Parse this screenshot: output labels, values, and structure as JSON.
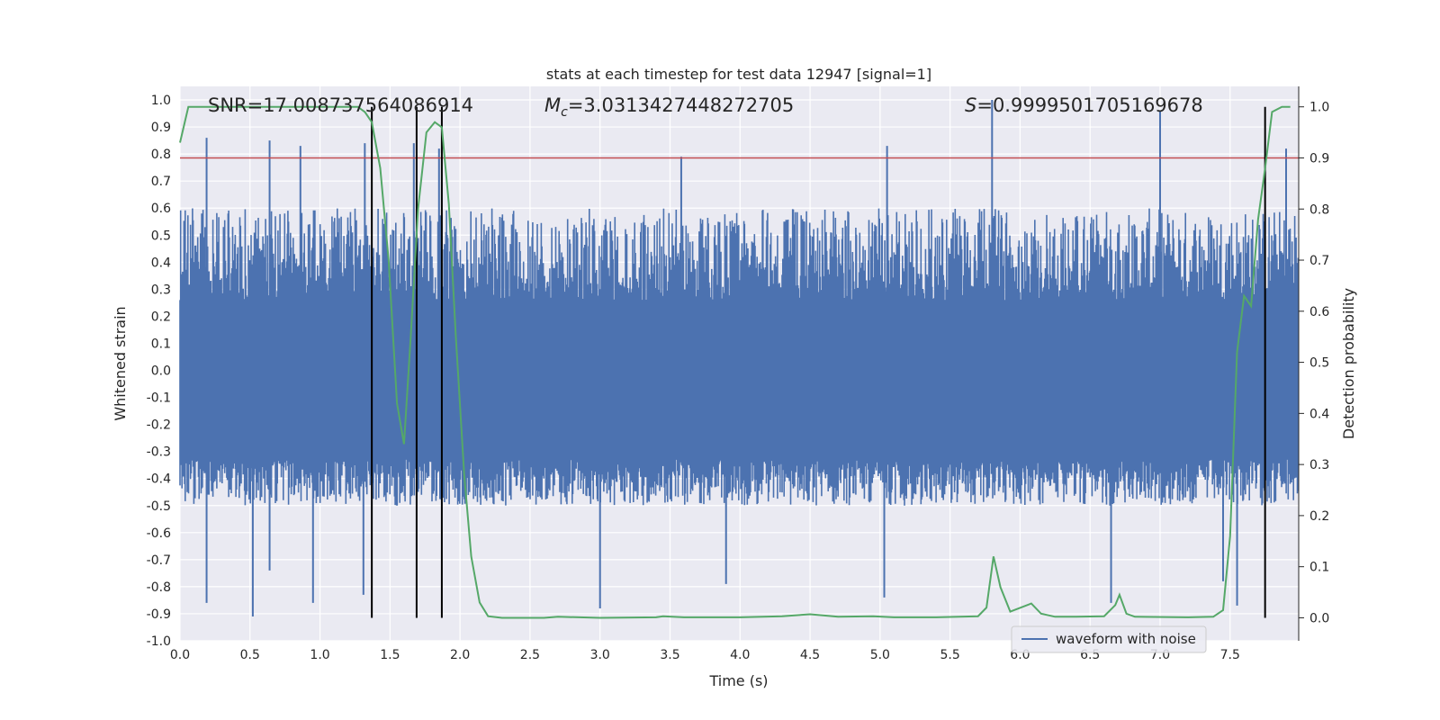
{
  "chart_data": {
    "type": "line",
    "title": "stats at each timestep for test data 12947 [signal=1]",
    "xlabel": "Time (s)",
    "ylabel": "Whitened strain",
    "ylabel_right": "Detection probability",
    "xlim": [
      0.0,
      7.99
    ],
    "ylim": [
      -1.0,
      1.05
    ],
    "ylim_right": [
      -0.045,
      1.04
    ],
    "grid": true,
    "x_ticks": [
      "0.0",
      "0.5",
      "1.0",
      "1.5",
      "2.0",
      "2.5",
      "3.0",
      "3.5",
      "4.0",
      "4.5",
      "5.0",
      "5.5",
      "6.0",
      "6.5",
      "7.0",
      "7.5"
    ],
    "y_ticks": [
      "1.0",
      "0.9",
      "0.8",
      "0.7",
      "0.6",
      "0.5",
      "0.4",
      "0.3",
      "0.2",
      "0.1",
      "0.0",
      "-0.1",
      "-0.2",
      "-0.3",
      "-0.4",
      "-0.5",
      "-0.6",
      "-0.7",
      "-0.8",
      "-0.9",
      "-1.0"
    ],
    "y_ticks_right": [
      "1.0",
      "0.9",
      "0.8",
      "0.7",
      "0.6",
      "0.5",
      "0.4",
      "0.3",
      "0.2",
      "0.1",
      "0.0"
    ],
    "annotations": {
      "snr": "SNR=17.008737564086914",
      "mc_sym": "M",
      "mc_sub": "c",
      "mc_val": "=3.0313427448272705",
      "s_sym": "S",
      "s_val": "=0.9999501705169678"
    },
    "threshold_line": {
      "axis": "right",
      "y": 0.9,
      "color": "#c44e52"
    },
    "vertical_lines": [
      1.37,
      1.69,
      1.87,
      7.75
    ],
    "vertical_lines_range": [
      0.0,
      1.0
    ],
    "legend": {
      "entries": [
        "waveform with noise"
      ],
      "placement": "lower-right"
    },
    "series": [
      {
        "name": "waveform with noise",
        "axis": "left",
        "color": "#4c72b0",
        "summary": {
          "n_samples": 16000,
          "typical_range": [
            -0.5,
            0.6
          ],
          "max": 1.0,
          "min": -0.91
        },
        "spikes_up": [
          [
            0.19,
            0.86
          ],
          [
            0.64,
            0.85
          ],
          [
            0.86,
            0.83
          ],
          [
            1.32,
            0.84
          ],
          [
            1.67,
            0.84
          ],
          [
            1.85,
            0.82
          ],
          [
            3.58,
            0.79
          ],
          [
            5.05,
            0.83
          ],
          [
            5.8,
            1.0
          ],
          [
            7.0,
            0.96
          ],
          [
            7.9,
            0.82
          ]
        ],
        "spikes_down": [
          [
            0.19,
            -0.86
          ],
          [
            0.52,
            -0.91
          ],
          [
            0.64,
            -0.74
          ],
          [
            0.95,
            -0.86
          ],
          [
            1.31,
            -0.83
          ],
          [
            3.0,
            -0.88
          ],
          [
            3.9,
            -0.79
          ],
          [
            5.03,
            -0.84
          ],
          [
            6.65,
            -0.86
          ],
          [
            7.45,
            -0.78
          ],
          [
            7.55,
            -0.87
          ]
        ]
      },
      {
        "name": "",
        "axis": "right",
        "color": "#55a868",
        "points": [
          [
            0.0,
            0.93
          ],
          [
            0.06,
            1.0
          ],
          [
            0.3,
            1.0
          ],
          [
            0.6,
            1.0
          ],
          [
            1.0,
            1.0
          ],
          [
            1.27,
            1.0
          ],
          [
            1.32,
            0.99
          ],
          [
            1.37,
            0.97
          ],
          [
            1.43,
            0.88
          ],
          [
            1.49,
            0.7
          ],
          [
            1.55,
            0.42
          ],
          [
            1.6,
            0.34
          ],
          [
            1.65,
            0.56
          ],
          [
            1.7,
            0.8
          ],
          [
            1.76,
            0.95
          ],
          [
            1.82,
            0.97
          ],
          [
            1.87,
            0.96
          ],
          [
            1.92,
            0.81
          ],
          [
            1.97,
            0.55
          ],
          [
            2.03,
            0.28
          ],
          [
            2.08,
            0.12
          ],
          [
            2.14,
            0.03
          ],
          [
            2.2,
            0.003
          ],
          [
            2.3,
            0.0
          ],
          [
            2.6,
            0.0
          ],
          [
            2.7,
            0.002
          ],
          [
            3.0,
            0.0
          ],
          [
            3.4,
            0.001
          ],
          [
            3.45,
            0.003
          ],
          [
            3.6,
            0.001
          ],
          [
            4.0,
            0.001
          ],
          [
            4.3,
            0.003
          ],
          [
            4.5,
            0.007
          ],
          [
            4.7,
            0.002
          ],
          [
            4.95,
            0.003
          ],
          [
            5.1,
            0.001
          ],
          [
            5.4,
            0.001
          ],
          [
            5.7,
            0.003
          ],
          [
            5.76,
            0.02
          ],
          [
            5.81,
            0.12
          ],
          [
            5.86,
            0.06
          ],
          [
            5.93,
            0.012
          ],
          [
            6.08,
            0.028
          ],
          [
            6.15,
            0.008
          ],
          [
            6.25,
            0.002
          ],
          [
            6.4,
            0.002
          ],
          [
            6.6,
            0.003
          ],
          [
            6.68,
            0.025
          ],
          [
            6.71,
            0.045
          ],
          [
            6.76,
            0.008
          ],
          [
            6.82,
            0.002
          ],
          [
            7.2,
            0.001
          ],
          [
            7.38,
            0.002
          ],
          [
            7.45,
            0.015
          ],
          [
            7.5,
            0.16
          ],
          [
            7.55,
            0.52
          ],
          [
            7.6,
            0.63
          ],
          [
            7.65,
            0.61
          ],
          [
            7.7,
            0.78
          ],
          [
            7.75,
            0.88
          ],
          [
            7.8,
            0.99
          ],
          [
            7.87,
            1.0
          ],
          [
            7.93,
            1.0
          ]
        ]
      }
    ]
  }
}
